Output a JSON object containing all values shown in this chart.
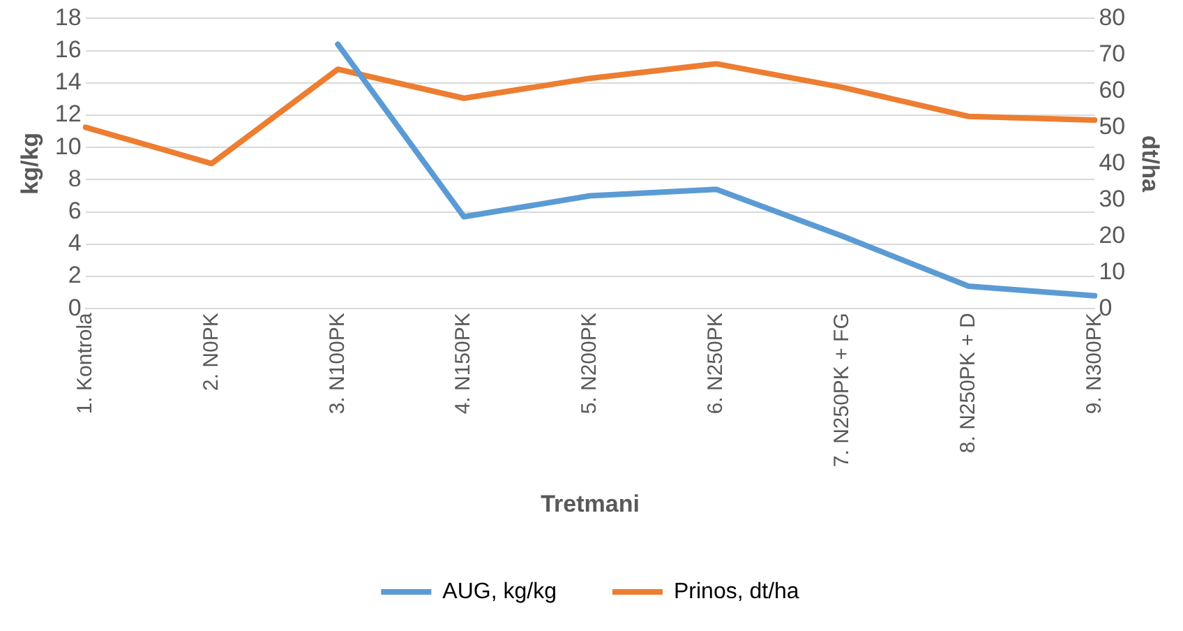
{
  "chart_data": {
    "type": "line",
    "xlabel": "Tretmani",
    "ylabel": "kg/kg",
    "y2label": "dt/ha",
    "categories": [
      "1. Kontrola",
      "2. N0PK",
      "3. N100PK",
      "4. N150PK",
      "5. N200PK",
      "6. N250PK",
      "7. N250PK + FG",
      "8. N250PK + D",
      "9. N300PK"
    ],
    "series": [
      {
        "name": "AUG, kg/kg",
        "color": "#5b9bd5",
        "values": [
          null,
          null,
          16.4,
          5.7,
          7.0,
          7.4,
          4.5,
          1.4,
          0.8
        ]
      },
      {
        "name": "Prinos, dt/ha",
        "color": "#ed7d31",
        "axis": "y2",
        "values": [
          50,
          40,
          66,
          58,
          63.5,
          67.5,
          61,
          53,
          52
        ]
      }
    ],
    "ylim": [
      0,
      18
    ],
    "yticks": [
      0,
      2,
      4,
      6,
      8,
      10,
      12,
      14,
      16,
      18
    ],
    "y2lim": [
      0,
      80
    ],
    "y2ticks": [
      0,
      10,
      20,
      30,
      40,
      50,
      60,
      70,
      80
    ],
    "grid": "y",
    "legend": "bottom",
    "marker": "none",
    "line_style": "solid"
  }
}
